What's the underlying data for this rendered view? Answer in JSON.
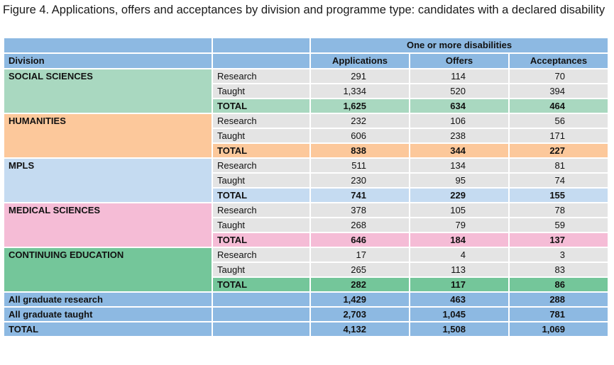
{
  "title": "Figure 4. Applications, offers and acceptances by division and programme type: candidates with a declared disability",
  "header": {
    "group": "One or more disabilities",
    "division": "Division",
    "applications": "Applications",
    "offers": "Offers",
    "acceptances": "Acceptances"
  },
  "colors": {
    "header": "#8db9e2",
    "grey": "#e4e4e4",
    "social_sciences": "#a9d8c0",
    "humanities": "#fcc89b",
    "mpls": "#c5dbf1",
    "medical_sciences": "#f5bcd6",
    "continuing_education": "#74c69a"
  },
  "divisions": [
    {
      "name": "SOCIAL SCIENCES",
      "rows": [
        {
          "type": "Research",
          "applications": "291",
          "offers": "114",
          "acceptances": "70"
        },
        {
          "type": "Taught",
          "applications": "1,334",
          "offers": "520",
          "acceptances": "394"
        },
        {
          "type": "TOTAL",
          "applications": "1,625",
          "offers": "634",
          "acceptances": "464"
        }
      ]
    },
    {
      "name": "HUMANITIES",
      "rows": [
        {
          "type": "Research",
          "applications": "232",
          "offers": "106",
          "acceptances": "56"
        },
        {
          "type": "Taught",
          "applications": "606",
          "offers": "238",
          "acceptances": "171"
        },
        {
          "type": "TOTAL",
          "applications": "838",
          "offers": "344",
          "acceptances": "227"
        }
      ]
    },
    {
      "name": "MPLS",
      "rows": [
        {
          "type": "Research",
          "applications": "511",
          "offers": "134",
          "acceptances": "81"
        },
        {
          "type": "Taught",
          "applications": "230",
          "offers": "95",
          "acceptances": "74"
        },
        {
          "type": "TOTAL",
          "applications": "741",
          "offers": "229",
          "acceptances": "155"
        }
      ]
    },
    {
      "name": "MEDICAL SCIENCES",
      "rows": [
        {
          "type": "Research",
          "applications": "378",
          "offers": "105",
          "acceptances": "78"
        },
        {
          "type": "Taught",
          "applications": "268",
          "offers": "79",
          "acceptances": "59"
        },
        {
          "type": "TOTAL",
          "applications": "646",
          "offers": "184",
          "acceptances": "137"
        }
      ]
    },
    {
      "name": "CONTINUING EDUCATION",
      "rows": [
        {
          "type": "Research",
          "applications": "17",
          "offers": "4",
          "acceptances": "3"
        },
        {
          "type": "Taught",
          "applications": "265",
          "offers": "113",
          "acceptances": "83"
        },
        {
          "type": "TOTAL",
          "applications": "282",
          "offers": "117",
          "acceptances": "86"
        }
      ]
    }
  ],
  "summary": [
    {
      "label": "All graduate research",
      "applications": "1,429",
      "offers": "463",
      "acceptances": "288"
    },
    {
      "label": "All graduate taught",
      "applications": "2,703",
      "offers": "1,045",
      "acceptances": "781"
    },
    {
      "label": "TOTAL",
      "applications": "4,132",
      "offers": "1,508",
      "acceptances": "1,069"
    }
  ]
}
